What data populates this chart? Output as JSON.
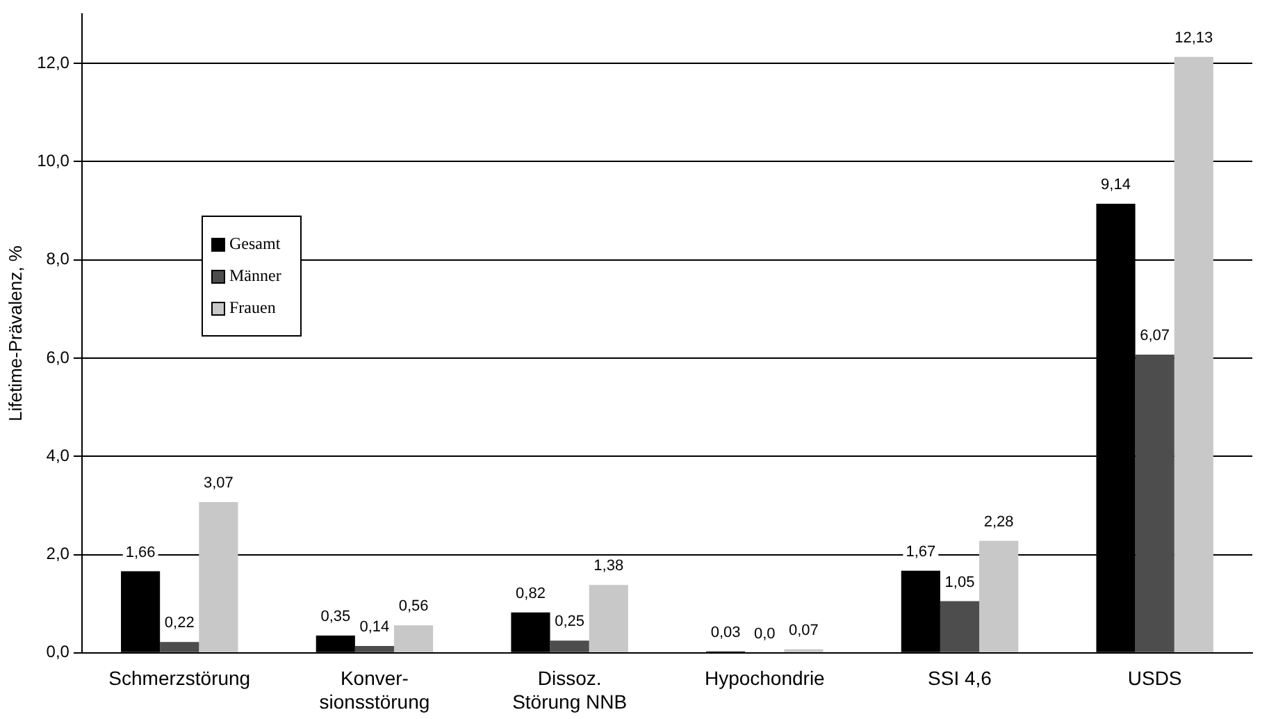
{
  "chart_data": {
    "type": "bar",
    "ylabel": "Lifetime-Prävalenz, %",
    "categories": [
      "Schmerzstörung",
      "Konver-\nsionsstörung",
      "Dissoz.\nStörung NNB",
      "Hypochondrie",
      "SSI 4,6",
      "USDS"
    ],
    "series": [
      {
        "name": "Gesamt",
        "color": "#000000",
        "values": [
          1.66,
          0.35,
          0.82,
          0.03,
          1.67,
          9.14
        ],
        "value_labels": [
          "1,66",
          "0,35",
          "0,82",
          "0,03",
          "1,67",
          "9,14"
        ]
      },
      {
        "name": "Männer",
        "color": "#4d4d4d",
        "values": [
          0.22,
          0.14,
          0.25,
          0.0,
          1.05,
          6.07
        ],
        "value_labels": [
          "0,22",
          "0,14",
          "0,25",
          "0,0",
          "1,05",
          "6,07"
        ]
      },
      {
        "name": "Frauen",
        "color": "#c8c8c8",
        "values": [
          3.07,
          0.56,
          1.38,
          0.07,
          2.28,
          12.13
        ],
        "value_labels": [
          "3,07",
          "0,56",
          "1,38",
          "0,07",
          "2,28",
          "12,13"
        ]
      }
    ],
    "ylim": [
      0,
      13
    ],
    "yticks": [
      {
        "value": 0,
        "label": "0,0"
      },
      {
        "value": 2,
        "label": "2,0"
      },
      {
        "value": 4,
        "label": "4,0"
      },
      {
        "value": 6,
        "label": "6,0"
      },
      {
        "value": 8,
        "label": "8,0"
      },
      {
        "value": 10,
        "label": "10,0"
      },
      {
        "value": 12,
        "label": "12,0"
      }
    ],
    "grid": "y",
    "legend": "left"
  }
}
